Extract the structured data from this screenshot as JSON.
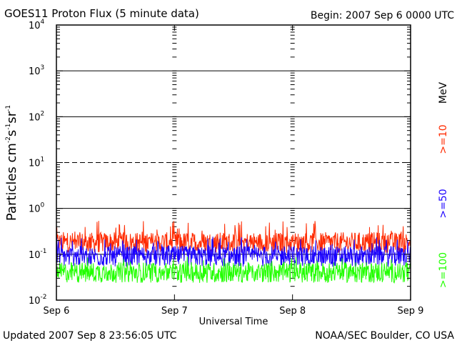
{
  "chart_data": {
    "type": "line",
    "title": "GOES11 Proton Flux (5 minute data)",
    "begin_label": "Begin: 2007 Sep 6 0000 UTC",
    "xlabel": "Universal Time",
    "ylabel": {
      "base": "Particles cm",
      "e1": "-2",
      "s": "s",
      "e2": "-1",
      "sr": "sr",
      "e3": "-1"
    },
    "y_scale": "log",
    "ylim": [
      0.01,
      10000
    ],
    "y_ticks": [
      {
        "value": 0.01,
        "base": "10",
        "exp": "-2"
      },
      {
        "value": 0.1,
        "base": "10",
        "exp": "-1"
      },
      {
        "value": 1,
        "base": "10",
        "exp": "0"
      },
      {
        "value": 10,
        "base": "10",
        "exp": "1"
      },
      {
        "value": 100,
        "base": "10",
        "exp": "2"
      },
      {
        "value": 1000,
        "base": "10",
        "exp": "3"
      },
      {
        "value": 10000,
        "base": "10",
        "exp": "4"
      }
    ],
    "x_ticks": [
      "Sep 6",
      "Sep 7",
      "Sep 8",
      "Sep 9"
    ],
    "x_range_days": [
      0,
      3
    ],
    "grid": true,
    "reference_lines": [
      {
        "value": 10,
        "style": "dashed"
      },
      {
        "value": 100,
        "style": "solid"
      },
      {
        "value": 1000,
        "style": "solid"
      },
      {
        "value": 1,
        "style": "solid"
      },
      {
        "value": 0.1,
        "style": "solid"
      }
    ],
    "energy_unit": "MeV",
    "series": [
      {
        "name": ">=10",
        "color": "#ff2a00",
        "typical": 0.18,
        "min": 0.1,
        "max": 0.55
      },
      {
        "name": ">=50",
        "color": "#1a00ff",
        "typical": 0.09,
        "min": 0.045,
        "max": 0.25
      },
      {
        "name": ">=100",
        "color": "#22ff00",
        "typical": 0.04,
        "min": 0.022,
        "max": 0.09
      }
    ]
  },
  "footer": {
    "updated": "Updated 2007 Sep  8 23:56:05 UTC",
    "source": "NOAA/SEC Boulder, CO USA"
  }
}
